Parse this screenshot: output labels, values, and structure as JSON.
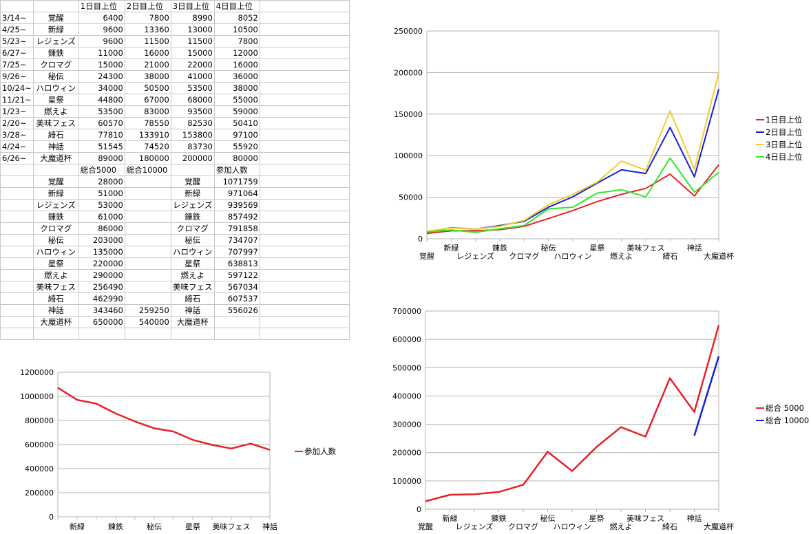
{
  "sheet": {
    "header": [
      "1日目上位",
      "2日目上位",
      "3日目上位",
      "4日目上位"
    ],
    "events": [
      {
        "date": "3/14~",
        "name": "覚醒",
        "d1": "6400",
        "d2": "7800",
        "d3": "8990",
        "d4": "8052"
      },
      {
        "date": "4/25~",
        "name": "新緑",
        "d1": "9600",
        "d2": "13360",
        "d3": "13000",
        "d4": "10500"
      },
      {
        "date": "5/23~",
        "name": "レジェンズ",
        "d1": "9600",
        "d2": "11500",
        "d3": "11500",
        "d4": "7800"
      },
      {
        "date": "6/27~",
        "name": "錬鉄",
        "d1": "11000",
        "d2": "16000",
        "d3": "15000",
        "d4": "12000"
      },
      {
        "date": "7/25~",
        "name": "クロマグ",
        "d1": "15000",
        "d2": "21000",
        "d3": "22000",
        "d4": "16000"
      },
      {
        "date": "9/26~",
        "name": "秘伝",
        "d1": "24300",
        "d2": "38000",
        "d3": "41000",
        "d4": "36000"
      },
      {
        "date": "10/24~",
        "name": "ハロウィン",
        "d1": "34000",
        "d2": "50500",
        "d3": "53500",
        "d4": "38000"
      },
      {
        "date": "11/21~",
        "name": "星祭",
        "d1": "44800",
        "d2": "67000",
        "d3": "68000",
        "d4": "55000"
      },
      {
        "date": "1/23~",
        "name": "燃えよ",
        "d1": "53500",
        "d2": "83000",
        "d3": "93500",
        "d4": "59000"
      },
      {
        "date": "2/20~",
        "name": "美味フェス",
        "d1": "60570",
        "d2": "78550",
        "d3": "82530",
        "d4": "50410"
      },
      {
        "date": "3/28~",
        "name": "綺石",
        "d1": "77810",
        "d2": "133910",
        "d3": "153800",
        "d4": "97100"
      },
      {
        "date": "4/24~",
        "name": "神話",
        "d1": "51545",
        "d2": "74520",
        "d3": "83730",
        "d4": "55920"
      },
      {
        "date": "6/26~",
        "name": "大魔道杯",
        "d1": "89000",
        "d2": "180000",
        "d3": "200000",
        "d4": "80000"
      }
    ],
    "total_header": [
      "総合5000",
      "総合10000"
    ],
    "participants_header": "参加人数",
    "totals": [
      {
        "name": "覚醒",
        "t5000": "28000",
        "t10000": "",
        "pname": "覚醒",
        "participants": "1071759"
      },
      {
        "name": "新緑",
        "t5000": "51000",
        "t10000": "",
        "pname": "新緑",
        "participants": "971064"
      },
      {
        "name": "レジェンズ",
        "t5000": "53000",
        "t10000": "",
        "pname": "レジェンズ",
        "participants": "939569"
      },
      {
        "name": "錬鉄",
        "t5000": "61000",
        "t10000": "",
        "pname": "錬鉄",
        "participants": "857492"
      },
      {
        "name": "クロマグ",
        "t5000": "86000",
        "t10000": "",
        "pname": "クロマグ",
        "participants": "791858"
      },
      {
        "name": "秘伝",
        "t5000": "203000",
        "t10000": "",
        "pname": "秘伝",
        "participants": "734707"
      },
      {
        "name": "ハロウィン",
        "t5000": "135000",
        "t10000": "",
        "pname": "ハロウィン",
        "participants": "707997"
      },
      {
        "name": "星祭",
        "t5000": "220000",
        "t10000": "",
        "pname": "星祭",
        "participants": "638813"
      },
      {
        "name": "燃えよ",
        "t5000": "290000",
        "t10000": "",
        "pname": "燃えよ",
        "participants": "597122"
      },
      {
        "name": "美味フェス",
        "t5000": "256490",
        "t10000": "",
        "pname": "美味フェス",
        "participants": "567034"
      },
      {
        "name": "綺石",
        "t5000": "462990",
        "t10000": "",
        "pname": "綺石",
        "participants": "607537"
      },
      {
        "name": "神話",
        "t5000": "343460",
        "t10000": "259250",
        "pname": "神話",
        "participants": "556026"
      },
      {
        "name": "大魔道杯",
        "t5000": "650000",
        "t10000": "540000",
        "pname": "大魔道杯",
        "participants": ""
      }
    ]
  },
  "chart_data": [
    {
      "type": "line",
      "id": "daily",
      "title": "",
      "categories": [
        "覚醒",
        "新緑",
        "レジェンズ",
        "錬鉄",
        "クロマグ",
        "秘伝",
        "ハロウィン",
        "星祭",
        "燃えよ",
        "美味フェス",
        "綺石",
        "神話",
        "大魔道杯"
      ],
      "ylim": [
        0,
        250000
      ],
      "yticks": [
        "0",
        "50000",
        "100000",
        "150000",
        "200000",
        "250000"
      ],
      "series": [
        {
          "name": "1日目上位",
          "color": "#e8202a",
          "values": [
            6400,
            9600,
            9600,
            11000,
            15000,
            24300,
            34000,
            44800,
            53500,
            60570,
            77810,
            51545,
            89000
          ]
        },
        {
          "name": "2日目上位",
          "color": "#1220d8",
          "values": [
            7800,
            13360,
            11500,
            16000,
            21000,
            38000,
            50500,
            67000,
            83000,
            78550,
            133910,
            74520,
            180000
          ]
        },
        {
          "name": "3日目上位",
          "color": "#f2cc2c",
          "values": [
            8990,
            13000,
            11500,
            15000,
            22000,
            41000,
            53500,
            68000,
            93500,
            82530,
            153800,
            83730,
            200000
          ]
        },
        {
          "name": "4日目上位",
          "color": "#2ee82a",
          "values": [
            8052,
            10500,
            7800,
            12000,
            16000,
            36000,
            38000,
            55000,
            59000,
            50410,
            97100,
            55920,
            80000
          ]
        }
      ],
      "legend": "right"
    },
    {
      "type": "line",
      "id": "participants",
      "title": "",
      "categories": [
        "覚醒",
        "新緑",
        "レジェンズ",
        "錬鉄",
        "クロマグ",
        "秘伝",
        "ハロウィン",
        "星祭",
        "燃えよ",
        "美味フェス",
        "綺石",
        "神話"
      ],
      "xtick_labels": [
        "新緑",
        "錬鉄",
        "秘伝",
        "星祭",
        "美味フェス",
        "神話"
      ],
      "ylim": [
        0,
        1200000
      ],
      "yticks": [
        "0",
        "200000",
        "400000",
        "600000",
        "800000",
        "1000000",
        "1200000"
      ],
      "series": [
        {
          "name": "参加人数",
          "color": "#e8202a",
          "values": [
            1071759,
            971064,
            939569,
            857492,
            791858,
            734707,
            707997,
            638813,
            597122,
            567034,
            607537,
            556026
          ]
        }
      ],
      "legend": "right"
    },
    {
      "type": "line",
      "id": "totals",
      "title": "",
      "categories": [
        "覚醒",
        "新緑",
        "レジェンズ",
        "錬鉄",
        "クロマグ",
        "秘伝",
        "ハロウィン",
        "星祭",
        "燃えよ",
        "美味フェス",
        "綺石",
        "神話",
        "大魔道杯"
      ],
      "ylim": [
        0,
        700000
      ],
      "yticks": [
        "0",
        "100000",
        "200000",
        "300000",
        "400000",
        "500000",
        "600000",
        "700000"
      ],
      "series": [
        {
          "name": "総合 5000",
          "color": "#e8202a",
          "values": [
            28000,
            51000,
            53000,
            61000,
            86000,
            203000,
            135000,
            220000,
            290000,
            256490,
            462990,
            343460,
            650000
          ]
        },
        {
          "name": "総合 10000",
          "color": "#1220d8",
          "values": [
            null,
            null,
            null,
            null,
            null,
            null,
            null,
            null,
            null,
            null,
            null,
            259250,
            540000
          ]
        }
      ],
      "legend": "right"
    }
  ]
}
